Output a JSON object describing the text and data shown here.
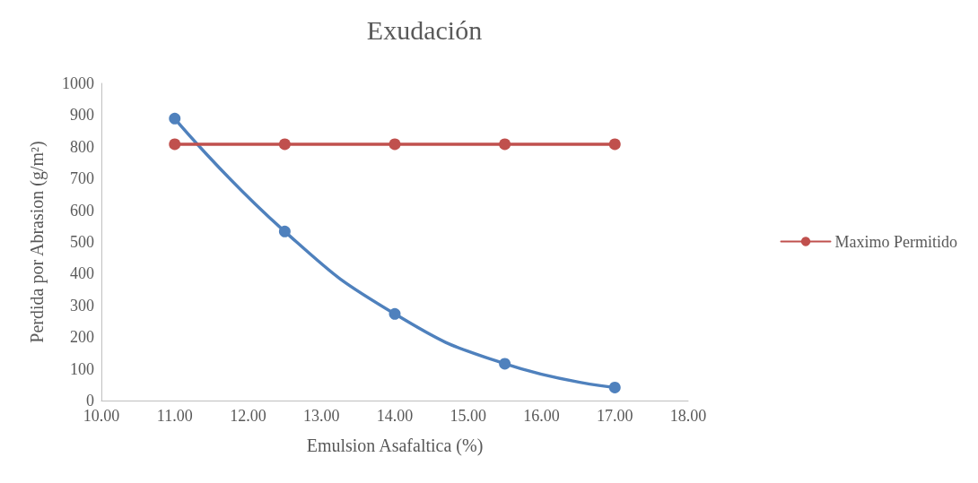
{
  "chart_data": {
    "type": "line",
    "title": "Exudación",
    "xlabel": "Emulsion Asafaltica (%)",
    "ylabel": "Perdida por Abrasion (g/m²)",
    "x": [
      11,
      12.5,
      14,
      15.5,
      17
    ],
    "series": [
      {
        "color": "#4f81bd",
        "values": [
          889,
          533,
          273,
          116,
          41
        ]
      },
      {
        "name": "Maximo Permitido",
        "color": "#c0504d",
        "values": [
          808,
          808,
          808,
          808,
          808
        ]
      }
    ],
    "xlim": [
      10,
      18
    ],
    "xticks": [
      {
        "value": 10,
        "label": "10.00"
      },
      {
        "value": 11,
        "label": "11.00"
      },
      {
        "value": 12,
        "label": "12.00"
      },
      {
        "value": 13,
        "label": "13.00"
      },
      {
        "value": 14,
        "label": "14.00"
      },
      {
        "value": 15,
        "label": "15.00"
      },
      {
        "value": 16,
        "label": "16.00"
      },
      {
        "value": 17,
        "label": "17.00"
      },
      {
        "value": 18,
        "label": "18.00"
      }
    ],
    "ylim": [
      0,
      1000
    ],
    "yticks": [
      0,
      100,
      200,
      300,
      400,
      500,
      600,
      700,
      800,
      900,
      1000
    ],
    "grid": false,
    "legend": "right",
    "marker": "circle",
    "line_style": "solid"
  }
}
